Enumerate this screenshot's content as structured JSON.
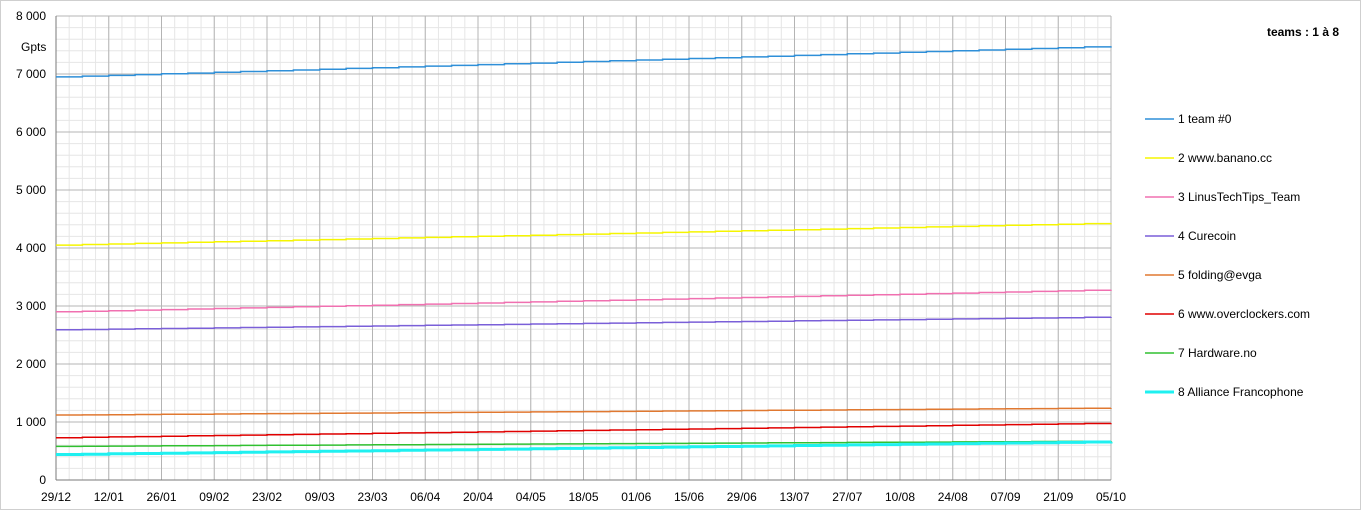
{
  "chart_data": {
    "type": "line",
    "title": "teams : 1 à 8",
    "ylabel": "Gpts",
    "xlabel": "",
    "ylim": [
      0,
      8000
    ],
    "y_ticks": [
      0,
      1000,
      2000,
      3000,
      4000,
      5000,
      6000,
      7000,
      8000
    ],
    "y_tick_labels": [
      "0",
      "1 000",
      "2 000",
      "3 000",
      "4 000",
      "5 000",
      "6 000",
      "7 000",
      "8 000"
    ],
    "x_range_days": [
      0,
      280
    ],
    "x_tick_days": [
      0,
      14,
      28,
      42,
      56,
      70,
      84,
      98,
      112,
      126,
      140,
      154,
      168,
      182,
      196,
      210,
      224,
      238,
      252,
      266,
      280
    ],
    "x_tick_labels": [
      "29/12",
      "12/01",
      "26/01",
      "09/02",
      "23/02",
      "09/03",
      "23/03",
      "06/04",
      "20/04",
      "04/05",
      "18/05",
      "01/06",
      "15/06",
      "29/06",
      "13/07",
      "27/07",
      "10/08",
      "24/08",
      "07/09",
      "21/09",
      "05/10"
    ],
    "grid": true,
    "legend_position": "right",
    "series": [
      {
        "name": "1 team #0",
        "color": "#2e8fd8",
        "width": 1.5,
        "x": [
          0,
          280
        ],
        "values": [
          6950,
          7480
        ]
      },
      {
        "name": "2 www.banano.cc",
        "color": "#f5f500",
        "width": 1.5,
        "x": [
          0,
          280
        ],
        "values": [
          4050,
          4430
        ]
      },
      {
        "name": "3 LinusTechTips_Team",
        "color": "#f070b0",
        "width": 1.5,
        "x": [
          0,
          280
        ],
        "values": [
          2900,
          3280
        ]
      },
      {
        "name": "4 Curecoin",
        "color": "#7a5fd8",
        "width": 1.5,
        "x": [
          0,
          280
        ],
        "values": [
          2590,
          2810
        ]
      },
      {
        "name": "5 folding@evga",
        "color": "#e07830",
        "width": 1.5,
        "x": [
          0,
          280
        ],
        "values": [
          1120,
          1240
        ]
      },
      {
        "name": "6 www.overclockers.com",
        "color": "#e00000",
        "width": 1.5,
        "x": [
          0,
          280
        ],
        "values": [
          730,
          980
        ]
      },
      {
        "name": "7 Hardware.no",
        "color": "#30c030",
        "width": 1.5,
        "x": [
          0,
          280
        ],
        "values": [
          580,
          670
        ]
      },
      {
        "name": "8 Alliance Francophone",
        "color": "#1ff0f0",
        "width": 3,
        "x": [
          0,
          280
        ],
        "values": [
          440,
          660
        ]
      }
    ]
  }
}
